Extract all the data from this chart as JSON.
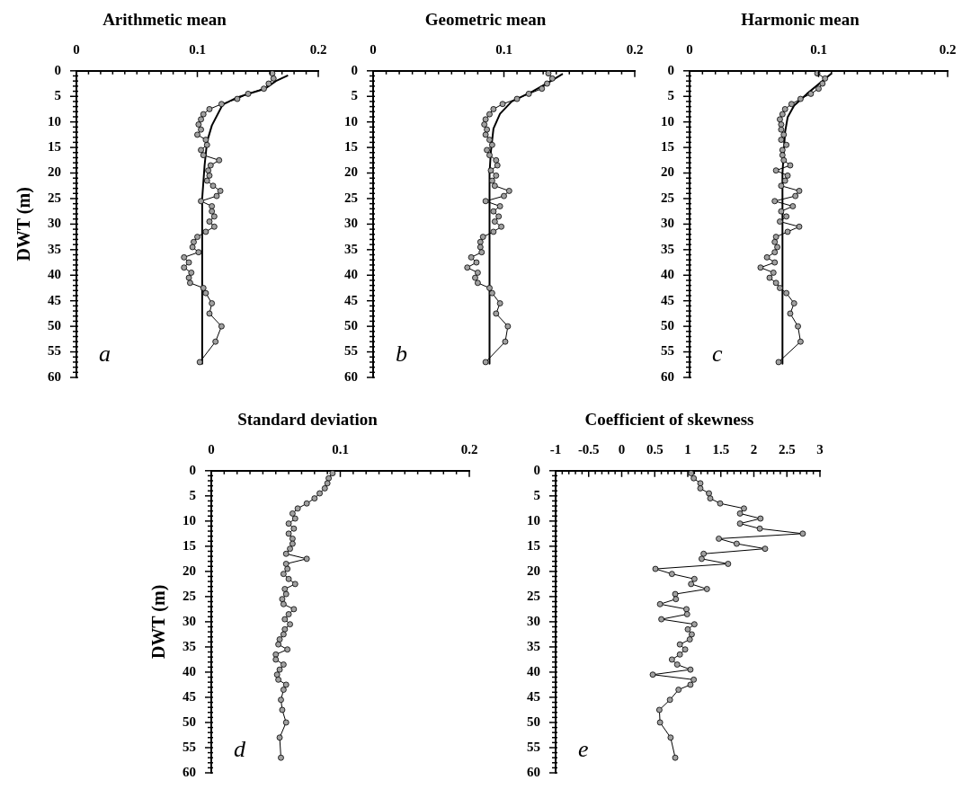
{
  "chart_data": [
    {
      "type": "line",
      "title": "Arithmetic mean",
      "ylabel": "DWT (m)",
      "annotations": [
        "a"
      ],
      "xlim": [
        0,
        0.2
      ],
      "xticks": [
        0,
        {
          "value": 0.01,
          "label": null
        },
        {
          "value": 0.02,
          "label": null
        },
        {
          "value": 0.03,
          "label": null
        },
        {
          "value": 0.04,
          "label": null
        },
        {
          "value": 0.05,
          "label": null
        },
        {
          "value": 0.06,
          "label": null
        },
        {
          "value": 0.07,
          "label": null
        },
        {
          "value": 0.08,
          "label": null
        },
        {
          "value": 0.09,
          "label": null
        },
        0.1,
        {
          "value": 0.11,
          "label": null
        },
        {
          "value": 0.12,
          "label": null
        },
        {
          "value": 0.13,
          "label": null
        },
        {
          "value": 0.14,
          "label": null
        },
        {
          "value": 0.15,
          "label": null
        },
        {
          "value": 0.16,
          "label": null
        },
        {
          "value": 0.17,
          "label": null
        },
        {
          "value": 0.18,
          "label": null
        },
        {
          "value": 0.19,
          "label": null
        },
        0.2
      ],
      "ylim": [
        60,
        0
      ],
      "yticks": [
        0,
        {
          "value": 1,
          "label": null
        },
        {
          "value": 2,
          "label": null
        },
        {
          "value": 3,
          "label": null
        },
        {
          "value": 4,
          "label": null
        },
        5,
        {
          "value": 6,
          "label": null
        },
        {
          "value": 7,
          "label": null
        },
        {
          "value": 8,
          "label": null
        },
        {
          "value": 9,
          "label": null
        },
        10,
        {
          "value": 11,
          "label": null
        },
        {
          "value": 12,
          "label": null
        },
        {
          "value": 13,
          "label": null
        },
        {
          "value": 14,
          "label": null
        },
        15,
        {
          "value": 16,
          "label": null
        },
        {
          "value": 17,
          "label": null
        },
        {
          "value": 18,
          "label": null
        },
        {
          "value": 19,
          "label": null
        },
        20,
        {
          "value": 21,
          "label": null
        },
        {
          "value": 22,
          "label": null
        },
        {
          "value": 23,
          "label": null
        },
        {
          "value": 24,
          "label": null
        },
        25,
        {
          "value": 26,
          "label": null
        },
        {
          "value": 27,
          "label": null
        },
        {
          "value": 28,
          "label": null
        },
        {
          "value": 29,
          "label": null
        },
        30,
        {
          "value": 31,
          "label": null
        },
        {
          "value": 32,
          "label": null
        },
        {
          "value": 33,
          "label": null
        },
        {
          "value": 34,
          "label": null
        },
        35,
        {
          "value": 36,
          "label": null
        },
        {
          "value": 37,
          "label": null
        },
        {
          "value": 38,
          "label": null
        },
        {
          "value": 39,
          "label": null
        },
        40,
        {
          "value": 41,
          "label": null
        },
        {
          "value": 42,
          "label": null
        },
        {
          "value": 43,
          "label": null
        },
        {
          "value": 44,
          "label": null
        },
        45,
        {
          "value": 46,
          "label": null
        },
        {
          "value": 47,
          "label": null
        },
        {
          "value": 48,
          "label": null
        },
        {
          "value": 49,
          "label": null
        },
        50,
        {
          "value": 51,
          "label": null
        },
        {
          "value": 52,
          "label": null
        },
        {
          "value": 53,
          "label": null
        },
        {
          "value": 54,
          "label": null
        },
        55,
        {
          "value": 56,
          "label": null
        },
        {
          "value": 57,
          "label": null
        },
        {
          "value": 58,
          "label": null
        },
        {
          "value": 59,
          "label": null
        },
        60
      ],
      "series": [
        {
          "type": "line",
          "marker": "circle",
          "color": "#a0a0a0",
          "x": [
            0.162,
            0.163,
            0.159,
            0.155,
            0.142,
            0.133,
            0.12,
            0.11,
            0.105,
            0.103,
            0.101,
            0.103,
            0.1,
            0.107,
            0.108,
            0.103,
            0.105,
            0.118,
            0.111,
            0.109,
            0.11,
            0.108,
            0.113,
            0.119,
            0.116,
            0.103,
            0.112,
            0.112,
            0.114,
            0.11,
            0.114,
            0.107,
            0.1,
            0.097,
            0.096,
            0.101,
            0.089,
            0.093,
            0.089,
            0.095,
            0.093,
            0.094,
            0.105,
            0.107,
            0.112,
            0.11,
            0.12,
            0.115,
            0.102
          ],
          "values": [
            0.5,
            1.5,
            2.5,
            3.5,
            4.5,
            5.5,
            6.5,
            7.5,
            8.5,
            9.5,
            10.5,
            11.5,
            12.5,
            13.5,
            14.5,
            15.5,
            16.5,
            17.5,
            18.5,
            19.5,
            20.5,
            21.5,
            22.5,
            23.5,
            24.5,
            25.5,
            26.5,
            27.5,
            28.5,
            29.5,
            30.5,
            31.5,
            32.5,
            33.5,
            34.5,
            35.5,
            36.5,
            37.5,
            38.5,
            39.5,
            40.5,
            41.5,
            42.5,
            43.5,
            45.5,
            47.5,
            50,
            53,
            57
          ]
        },
        {
          "type": "line",
          "marker": "none",
          "color": "#000000",
          "x": [
            0.175,
            0.165,
            0.156,
            0.145,
            0.133,
            0.121,
            0.112,
            0.108,
            0.106,
            0.104,
            0.104
          ],
          "values": [
            0.9,
            2.0,
            3.5,
            4.3,
            5.2,
            6.6,
            10.7,
            13.9,
            18.5,
            25,
            57.3
          ]
        }
      ]
    },
    {
      "type": "line",
      "title": "Geometric mean",
      "annotations": [
        "b"
      ],
      "xlim": [
        0,
        0.2
      ],
      "xticks": [
        0,
        {
          "value": 0.01,
          "label": null
        },
        {
          "value": 0.02,
          "label": null
        },
        {
          "value": 0.03,
          "label": null
        },
        {
          "value": 0.04,
          "label": null
        },
        {
          "value": 0.05,
          "label": null
        },
        {
          "value": 0.06,
          "label": null
        },
        {
          "value": 0.07,
          "label": null
        },
        {
          "value": 0.08,
          "label": null
        },
        {
          "value": 0.09,
          "label": null
        },
        0.1,
        {
          "value": 0.11,
          "label": null
        },
        {
          "value": 0.12,
          "label": null
        },
        {
          "value": 0.13,
          "label": null
        },
        {
          "value": 0.14,
          "label": null
        },
        {
          "value": 0.15,
          "label": null
        },
        {
          "value": 0.16,
          "label": null
        },
        {
          "value": 0.17,
          "label": null
        },
        {
          "value": 0.18,
          "label": null
        },
        {
          "value": 0.19,
          "label": null
        },
        0.2
      ],
      "ylim": [
        60,
        0
      ],
      "yticks": [
        0,
        {
          "value": 1,
          "label": null
        },
        {
          "value": 2,
          "label": null
        },
        {
          "value": 3,
          "label": null
        },
        {
          "value": 4,
          "label": null
        },
        5,
        {
          "value": 6,
          "label": null
        },
        {
          "value": 7,
          "label": null
        },
        {
          "value": 8,
          "label": null
        },
        {
          "value": 9,
          "label": null
        },
        10,
        {
          "value": 11,
          "label": null
        },
        {
          "value": 12,
          "label": null
        },
        {
          "value": 13,
          "label": null
        },
        {
          "value": 14,
          "label": null
        },
        15,
        {
          "value": 16,
          "label": null
        },
        {
          "value": 17,
          "label": null
        },
        {
          "value": 18,
          "label": null
        },
        {
          "value": 19,
          "label": null
        },
        20,
        {
          "value": 21,
          "label": null
        },
        {
          "value": 22,
          "label": null
        },
        {
          "value": 23,
          "label": null
        },
        {
          "value": 24,
          "label": null
        },
        25,
        {
          "value": 26,
          "label": null
        },
        {
          "value": 27,
          "label": null
        },
        {
          "value": 28,
          "label": null
        },
        {
          "value": 29,
          "label": null
        },
        30,
        {
          "value": 31,
          "label": null
        },
        {
          "value": 32,
          "label": null
        },
        {
          "value": 33,
          "label": null
        },
        {
          "value": 34,
          "label": null
        },
        35,
        {
          "value": 36,
          "label": null
        },
        {
          "value": 37,
          "label": null
        },
        {
          "value": 38,
          "label": null
        },
        {
          "value": 39,
          "label": null
        },
        40,
        {
          "value": 41,
          "label": null
        },
        {
          "value": 42,
          "label": null
        },
        {
          "value": 43,
          "label": null
        },
        {
          "value": 44,
          "label": null
        },
        45,
        {
          "value": 46,
          "label": null
        },
        {
          "value": 47,
          "label": null
        },
        {
          "value": 48,
          "label": null
        },
        {
          "value": 49,
          "label": null
        },
        50,
        {
          "value": 51,
          "label": null
        },
        {
          "value": 52,
          "label": null
        },
        {
          "value": 53,
          "label": null
        },
        {
          "value": 54,
          "label": null
        },
        55,
        {
          "value": 56,
          "label": null
        },
        {
          "value": 57,
          "label": null
        },
        {
          "value": 58,
          "label": null
        },
        {
          "value": 59,
          "label": null
        },
        60
      ],
      "series": [
        {
          "type": "line",
          "marker": "circle",
          "color": "#a0a0a0",
          "x": [
            0.134,
            0.137,
            0.133,
            0.129,
            0.119,
            0.11,
            0.099,
            0.092,
            0.089,
            0.086,
            0.085,
            0.087,
            0.086,
            0.089,
            0.091,
            0.087,
            0.089,
            0.094,
            0.095,
            0.09,
            0.094,
            0.091,
            0.093,
            0.104,
            0.1,
            0.086,
            0.097,
            0.092,
            0.096,
            0.093,
            0.098,
            0.092,
            0.084,
            0.082,
            0.082,
            0.083,
            0.075,
            0.079,
            0.072,
            0.08,
            0.078,
            0.08,
            0.089,
            0.091,
            0.097,
            0.094,
            0.103,
            0.101,
            0.086
          ],
          "values": [
            0.5,
            1.5,
            2.5,
            3.5,
            4.5,
            5.5,
            6.5,
            7.5,
            8.5,
            9.5,
            10.5,
            11.5,
            12.5,
            13.5,
            14.5,
            15.5,
            16.5,
            17.5,
            18.5,
            19.5,
            20.5,
            21.5,
            22.5,
            23.5,
            24.5,
            25.5,
            26.5,
            27.5,
            28.5,
            29.5,
            30.5,
            31.5,
            32.5,
            33.5,
            34.5,
            35.5,
            36.5,
            37.5,
            38.5,
            39.5,
            40.5,
            41.5,
            42.5,
            43.5,
            45.5,
            47.5,
            50,
            53,
            57
          ]
        },
        {
          "type": "line",
          "marker": "none",
          "color": "#000000",
          "x": [
            0.145,
            0.136,
            0.122,
            0.106,
            0.097,
            0.092,
            0.09,
            0.089,
            0.089
          ],
          "values": [
            0.6,
            2,
            4,
            6,
            8.4,
            11.3,
            15.9,
            20,
            57.3
          ]
        }
      ]
    },
    {
      "type": "line",
      "title": "Harmonic mean",
      "annotations": [
        "c"
      ],
      "xlim": [
        0,
        0.2
      ],
      "xticks": [
        0,
        {
          "value": 0.01,
          "label": null
        },
        {
          "value": 0.02,
          "label": null
        },
        {
          "value": 0.03,
          "label": null
        },
        {
          "value": 0.04,
          "label": null
        },
        {
          "value": 0.05,
          "label": null
        },
        {
          "value": 0.06,
          "label": null
        },
        {
          "value": 0.07,
          "label": null
        },
        {
          "value": 0.08,
          "label": null
        },
        {
          "value": 0.09,
          "label": null
        },
        0.1,
        {
          "value": 0.11,
          "label": null
        },
        {
          "value": 0.12,
          "label": null
        },
        {
          "value": 0.13,
          "label": null
        },
        {
          "value": 0.14,
          "label": null
        },
        {
          "value": 0.15,
          "label": null
        },
        {
          "value": 0.16,
          "label": null
        },
        {
          "value": 0.17,
          "label": null
        },
        {
          "value": 0.18,
          "label": null
        },
        {
          "value": 0.19,
          "label": null
        },
        0.2
      ],
      "ylim": [
        60,
        0
      ],
      "yticks": [
        0,
        {
          "value": 1,
          "label": null
        },
        {
          "value": 2,
          "label": null
        },
        {
          "value": 3,
          "label": null
        },
        {
          "value": 4,
          "label": null
        },
        5,
        {
          "value": 6,
          "label": null
        },
        {
          "value": 7,
          "label": null
        },
        {
          "value": 8,
          "label": null
        },
        {
          "value": 9,
          "label": null
        },
        10,
        {
          "value": 11,
          "label": null
        },
        {
          "value": 12,
          "label": null
        },
        {
          "value": 13,
          "label": null
        },
        {
          "value": 14,
          "label": null
        },
        15,
        {
          "value": 16,
          "label": null
        },
        {
          "value": 17,
          "label": null
        },
        {
          "value": 18,
          "label": null
        },
        {
          "value": 19,
          "label": null
        },
        20,
        {
          "value": 21,
          "label": null
        },
        {
          "value": 22,
          "label": null
        },
        {
          "value": 23,
          "label": null
        },
        {
          "value": 24,
          "label": null
        },
        25,
        {
          "value": 26,
          "label": null
        },
        {
          "value": 27,
          "label": null
        },
        {
          "value": 28,
          "label": null
        },
        {
          "value": 29,
          "label": null
        },
        30,
        {
          "value": 31,
          "label": null
        },
        {
          "value": 32,
          "label": null
        },
        {
          "value": 33,
          "label": null
        },
        {
          "value": 34,
          "label": null
        },
        35,
        {
          "value": 36,
          "label": null
        },
        {
          "value": 37,
          "label": null
        },
        {
          "value": 38,
          "label": null
        },
        {
          "value": 39,
          "label": null
        },
        40,
        {
          "value": 41,
          "label": null
        },
        {
          "value": 42,
          "label": null
        },
        {
          "value": 43,
          "label": null
        },
        {
          "value": 44,
          "label": null
        },
        45,
        {
          "value": 46,
          "label": null
        },
        {
          "value": 47,
          "label": null
        },
        {
          "value": 48,
          "label": null
        },
        {
          "value": 49,
          "label": null
        },
        50,
        {
          "value": 51,
          "label": null
        },
        {
          "value": 52,
          "label": null
        },
        {
          "value": 53,
          "label": null
        },
        {
          "value": 54,
          "label": null
        },
        55,
        {
          "value": 56,
          "label": null
        },
        {
          "value": 57,
          "label": null
        },
        {
          "value": 58,
          "label": null
        },
        {
          "value": 59,
          "label": null
        },
        60
      ],
      "series": [
        {
          "type": "line",
          "marker": "circle",
          "color": "#a0a0a0",
          "x": [
            0.099,
            0.105,
            0.103,
            0.1,
            0.094,
            0.086,
            0.079,
            0.074,
            0.072,
            0.07,
            0.071,
            0.071,
            0.073,
            0.071,
            0.075,
            0.072,
            0.072,
            0.073,
            0.078,
            0.067,
            0.076,
            0.074,
            0.071,
            0.085,
            0.082,
            0.066,
            0.08,
            0.071,
            0.075,
            0.07,
            0.085,
            0.076,
            0.067,
            0.066,
            0.068,
            0.066,
            0.06,
            0.066,
            0.055,
            0.065,
            0.062,
            0.067,
            0.07,
            0.075,
            0.081,
            0.078,
            0.084,
            0.086,
            0.069
          ],
          "values": [
            0.5,
            1.5,
            2.5,
            3.5,
            4.5,
            5.5,
            6.5,
            7.5,
            8.5,
            9.5,
            10.5,
            11.5,
            12.5,
            13.5,
            14.5,
            15.5,
            16.5,
            17.5,
            18.5,
            19.5,
            20.5,
            21.5,
            22.5,
            23.5,
            24.5,
            25.5,
            26.5,
            27.5,
            28.5,
            29.5,
            30.5,
            31.5,
            32.5,
            33.5,
            34.5,
            35.5,
            36.5,
            37.5,
            38.5,
            39.5,
            40.5,
            41.5,
            42.5,
            43.5,
            45.5,
            47.5,
            50,
            53,
            57
          ]
        },
        {
          "type": "line",
          "marker": "none",
          "color": "#000000",
          "x": [
            0.11,
            0.102,
            0.091,
            0.081,
            0.076,
            0.074,
            0.073,
            0.072,
            0.072
          ],
          "values": [
            0.5,
            2.2,
            4.5,
            6.8,
            9.1,
            12,
            16,
            20,
            57.3
          ]
        }
      ]
    },
    {
      "type": "line",
      "title": "Standard deviation",
      "ylabel": "DWT (m)",
      "annotations": [
        "d"
      ],
      "xlim": [
        0,
        0.2
      ],
      "xticks": [
        0,
        {
          "value": 0.01,
          "label": null
        },
        {
          "value": 0.02,
          "label": null
        },
        {
          "value": 0.03,
          "label": null
        },
        {
          "value": 0.04,
          "label": null
        },
        {
          "value": 0.05,
          "label": null
        },
        {
          "value": 0.06,
          "label": null
        },
        {
          "value": 0.07,
          "label": null
        },
        {
          "value": 0.08,
          "label": null
        },
        {
          "value": 0.09,
          "label": null
        },
        0.1,
        {
          "value": 0.11,
          "label": null
        },
        {
          "value": 0.12,
          "label": null
        },
        {
          "value": 0.13,
          "label": null
        },
        {
          "value": 0.14,
          "label": null
        },
        {
          "value": 0.15,
          "label": null
        },
        {
          "value": 0.16,
          "label": null
        },
        {
          "value": 0.17,
          "label": null
        },
        {
          "value": 0.18,
          "label": null
        },
        {
          "value": 0.19,
          "label": null
        },
        0.2
      ],
      "ylim": [
        60,
        0
      ],
      "yticks": [
        0,
        {
          "value": 1,
          "label": null
        },
        {
          "value": 2,
          "label": null
        },
        {
          "value": 3,
          "label": null
        },
        {
          "value": 4,
          "label": null
        },
        5,
        {
          "value": 6,
          "label": null
        },
        {
          "value": 7,
          "label": null
        },
        {
          "value": 8,
          "label": null
        },
        {
          "value": 9,
          "label": null
        },
        10,
        {
          "value": 11,
          "label": null
        },
        {
          "value": 12,
          "label": null
        },
        {
          "value": 13,
          "label": null
        },
        {
          "value": 14,
          "label": null
        },
        15,
        {
          "value": 16,
          "label": null
        },
        {
          "value": 17,
          "label": null
        },
        {
          "value": 18,
          "label": null
        },
        {
          "value": 19,
          "label": null
        },
        20,
        {
          "value": 21,
          "label": null
        },
        {
          "value": 22,
          "label": null
        },
        {
          "value": 23,
          "label": null
        },
        {
          "value": 24,
          "label": null
        },
        25,
        {
          "value": 26,
          "label": null
        },
        {
          "value": 27,
          "label": null
        },
        {
          "value": 28,
          "label": null
        },
        {
          "value": 29,
          "label": null
        },
        30,
        {
          "value": 31,
          "label": null
        },
        {
          "value": 32,
          "label": null
        },
        {
          "value": 33,
          "label": null
        },
        {
          "value": 34,
          "label": null
        },
        35,
        {
          "value": 36,
          "label": null
        },
        {
          "value": 37,
          "label": null
        },
        {
          "value": 38,
          "label": null
        },
        {
          "value": 39,
          "label": null
        },
        40,
        {
          "value": 41,
          "label": null
        },
        {
          "value": 42,
          "label": null
        },
        {
          "value": 43,
          "label": null
        },
        {
          "value": 44,
          "label": null
        },
        45,
        {
          "value": 46,
          "label": null
        },
        {
          "value": 47,
          "label": null
        },
        {
          "value": 48,
          "label": null
        },
        {
          "value": 49,
          "label": null
        },
        50,
        {
          "value": 51,
          "label": null
        },
        {
          "value": 52,
          "label": null
        },
        {
          "value": 53,
          "label": null
        },
        {
          "value": 54,
          "label": null
        },
        55,
        {
          "value": 56,
          "label": null
        },
        {
          "value": 57,
          "label": null
        },
        {
          "value": 58,
          "label": null
        },
        {
          "value": 59,
          "label": null
        },
        60
      ],
      "series": [
        {
          "type": "line",
          "marker": "circle",
          "color": "#a0a0a0",
          "x": [
            0.094,
            0.091,
            0.09,
            0.088,
            0.084,
            0.08,
            0.074,
            0.067,
            0.063,
            0.065,
            0.06,
            0.064,
            0.06,
            0.063,
            0.063,
            0.061,
            0.058,
            0.074,
            0.058,
            0.059,
            0.056,
            0.06,
            0.065,
            0.057,
            0.058,
            0.055,
            0.056,
            0.064,
            0.06,
            0.057,
            0.061,
            0.057,
            0.056,
            0.053,
            0.052,
            0.059,
            0.05,
            0.05,
            0.056,
            0.053,
            0.051,
            0.052,
            0.058,
            0.056,
            0.054,
            0.055,
            0.058,
            0.053,
            0.054
          ],
          "values": [
            0.5,
            1.5,
            2.5,
            3.5,
            4.5,
            5.5,
            6.5,
            7.5,
            8.5,
            9.5,
            10.5,
            11.5,
            12.5,
            13.5,
            14.5,
            15.5,
            16.5,
            17.5,
            18.5,
            19.5,
            20.5,
            21.5,
            22.5,
            23.5,
            24.5,
            25.5,
            26.5,
            27.5,
            28.5,
            29.5,
            30.5,
            31.5,
            32.5,
            33.5,
            34.5,
            35.5,
            36.5,
            37.5,
            38.5,
            39.5,
            40.5,
            41.5,
            42.5,
            43.5,
            45.5,
            47.5,
            50,
            53,
            57
          ]
        }
      ]
    },
    {
      "type": "line",
      "title": "Coefficient of skewness",
      "annotations": [
        "e"
      ],
      "xlim": [
        -1,
        3
      ],
      "xticks": [
        -1,
        {
          "value": -0.9,
          "label": null
        },
        {
          "value": -0.8,
          "label": null
        },
        {
          "value": -0.7,
          "label": null
        },
        {
          "value": -0.6,
          "label": null
        },
        -0.5,
        {
          "value": -0.4,
          "label": null
        },
        {
          "value": -0.3,
          "label": null
        },
        {
          "value": -0.2,
          "label": null
        },
        {
          "value": -0.1,
          "label": null
        },
        0,
        {
          "value": 0.1,
          "label": null
        },
        {
          "value": 0.2,
          "label": null
        },
        {
          "value": 0.3,
          "label": null
        },
        {
          "value": 0.4,
          "label": null
        },
        0.5,
        {
          "value": 0.6,
          "label": null
        },
        {
          "value": 0.7,
          "label": null
        },
        {
          "value": 0.8,
          "label": null
        },
        {
          "value": 0.9,
          "label": null
        },
        1,
        {
          "value": 1.1,
          "label": null
        },
        {
          "value": 1.2,
          "label": null
        },
        {
          "value": 1.3,
          "label": null
        },
        {
          "value": 1.4,
          "label": null
        },
        1.5,
        {
          "value": 1.6,
          "label": null
        },
        {
          "value": 1.7,
          "label": null
        },
        {
          "value": 1.8,
          "label": null
        },
        {
          "value": 1.9,
          "label": null
        },
        2,
        {
          "value": 2.1,
          "label": null
        },
        {
          "value": 2.2,
          "label": null
        },
        {
          "value": 2.3,
          "label": null
        },
        {
          "value": 2.4,
          "label": null
        },
        2.5,
        {
          "value": 2.6,
          "label": null
        },
        {
          "value": 2.7,
          "label": null
        },
        {
          "value": 2.8,
          "label": null
        },
        {
          "value": 2.9,
          "label": null
        },
        3
      ],
      "ylim": [
        60,
        0
      ],
      "yticks": [
        0,
        {
          "value": 1,
          "label": null
        },
        {
          "value": 2,
          "label": null
        },
        {
          "value": 3,
          "label": null
        },
        {
          "value": 4,
          "label": null
        },
        5,
        {
          "value": 6,
          "label": null
        },
        {
          "value": 7,
          "label": null
        },
        {
          "value": 8,
          "label": null
        },
        {
          "value": 9,
          "label": null
        },
        10,
        {
          "value": 11,
          "label": null
        },
        {
          "value": 12,
          "label": null
        },
        {
          "value": 13,
          "label": null
        },
        {
          "value": 14,
          "label": null
        },
        15,
        {
          "value": 16,
          "label": null
        },
        {
          "value": 17,
          "label": null
        },
        {
          "value": 18,
          "label": null
        },
        {
          "value": 19,
          "label": null
        },
        20,
        {
          "value": 21,
          "label": null
        },
        {
          "value": 22,
          "label": null
        },
        {
          "value": 23,
          "label": null
        },
        {
          "value": 24,
          "label": null
        },
        25,
        {
          "value": 26,
          "label": null
        },
        {
          "value": 27,
          "label": null
        },
        {
          "value": 28,
          "label": null
        },
        {
          "value": 29,
          "label": null
        },
        30,
        {
          "value": 31,
          "label": null
        },
        {
          "value": 32,
          "label": null
        },
        {
          "value": 33,
          "label": null
        },
        {
          "value": 34,
          "label": null
        },
        35,
        {
          "value": 36,
          "label": null
        },
        {
          "value": 37,
          "label": null
        },
        {
          "value": 38,
          "label": null
        },
        {
          "value": 39,
          "label": null
        },
        40,
        {
          "value": 41,
          "label": null
        },
        {
          "value": 42,
          "label": null
        },
        {
          "value": 43,
          "label": null
        },
        {
          "value": 44,
          "label": null
        },
        45,
        {
          "value": 46,
          "label": null
        },
        {
          "value": 47,
          "label": null
        },
        {
          "value": 48,
          "label": null
        },
        {
          "value": 49,
          "label": null
        },
        50,
        {
          "value": 51,
          "label": null
        },
        {
          "value": 52,
          "label": null
        },
        {
          "value": 53,
          "label": null
        },
        {
          "value": 54,
          "label": null
        },
        55,
        {
          "value": 56,
          "label": null
        },
        {
          "value": 57,
          "label": null
        },
        {
          "value": 58,
          "label": null
        },
        {
          "value": 59,
          "label": null
        },
        60
      ],
      "series": [
        {
          "type": "line",
          "marker": "circle",
          "color": "#a0a0a0",
          "x": [
            1.05,
            1.09,
            1.19,
            1.19,
            1.32,
            1.34,
            1.49,
            1.85,
            1.79,
            2.1,
            1.79,
            2.09,
            2.74,
            1.47,
            1.74,
            2.17,
            1.24,
            1.21,
            1.61,
            0.51,
            0.76,
            1.1,
            1.05,
            1.29,
            0.81,
            0.82,
            0.58,
            0.98,
            0.99,
            0.6,
            1.1,
            1.0,
            1.06,
            1.03,
            0.88,
            0.96,
            0.88,
            0.76,
            0.84,
            1.04,
            0.47,
            1.09,
            1.04,
            0.86,
            0.73,
            0.57,
            0.58,
            0.74,
            0.81
          ],
          "values": [
            0.5,
            1.5,
            2.5,
            3.5,
            4.5,
            5.5,
            6.5,
            7.5,
            8.5,
            9.5,
            10.5,
            11.5,
            12.5,
            13.5,
            14.5,
            15.5,
            16.5,
            17.5,
            18.5,
            19.5,
            20.5,
            21.5,
            22.5,
            23.5,
            24.5,
            25.5,
            26.5,
            27.5,
            28.5,
            29.5,
            30.5,
            31.5,
            32.5,
            33.5,
            34.5,
            35.5,
            36.5,
            37.5,
            38.5,
            39.5,
            40.5,
            41.5,
            42.5,
            43.5,
            45.5,
            47.5,
            50,
            53,
            57
          ]
        }
      ]
    }
  ]
}
